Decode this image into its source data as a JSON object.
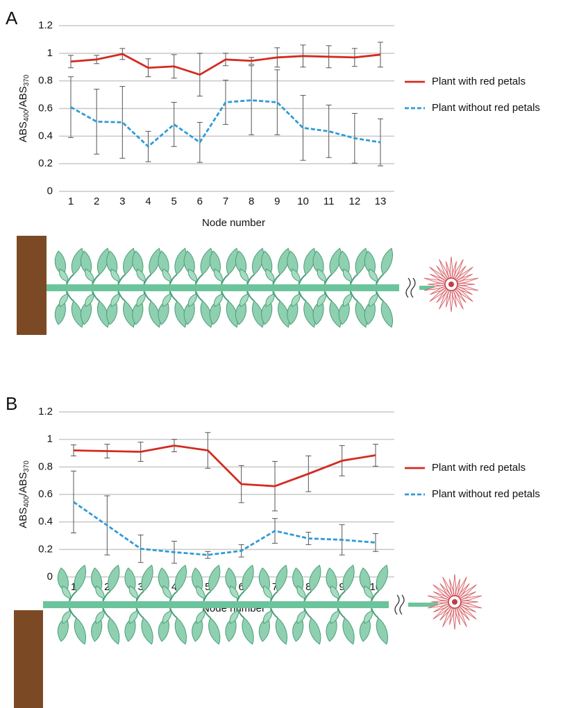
{
  "chart_data": [
    {
      "type": "line",
      "panel": "A",
      "y_label": [
        "ABS",
        "400",
        "/ABS",
        "370"
      ],
      "x_label": "Node number",
      "categories": [
        "1",
        "2",
        "3",
        "4",
        "5",
        "6",
        "7",
        "8",
        "9",
        "10",
        "11",
        "12",
        "13"
      ],
      "ylim": [
        0,
        1.2
      ],
      "yticks": [
        0,
        0.2,
        0.4,
        0.6,
        0.8,
        1,
        1.2
      ],
      "grid": true,
      "series": [
        {
          "name": "Plant with red petals",
          "color": "#d42a20",
          "dashed": false,
          "values": [
            0.94,
            0.955,
            0.995,
            0.895,
            0.905,
            0.845,
            0.955,
            0.945,
            0.97,
            0.98,
            0.975,
            0.97,
            0.99
          ],
          "errors": [
            0.045,
            0.03,
            0.04,
            0.065,
            0.085,
            0.155,
            0.045,
            0.025,
            0.07,
            0.08,
            0.08,
            0.065,
            0.09
          ]
        },
        {
          "name": "Plant without red petals",
          "color": "#2e9bd6",
          "dashed": true,
          "values": [
            0.61,
            0.505,
            0.5,
            0.325,
            0.485,
            0.355,
            0.645,
            0.66,
            0.645,
            0.46,
            0.435,
            0.385,
            0.355
          ],
          "errors": [
            0.22,
            0.235,
            0.26,
            0.11,
            0.16,
            0.145,
            0.16,
            0.25,
            0.235,
            0.235,
            0.19,
            0.18,
            0.17
          ]
        }
      ]
    },
    {
      "type": "line",
      "panel": "B",
      "y_label": [
        "ABS",
        "400",
        "/ABS",
        "370"
      ],
      "x_label": "Node number",
      "categories": [
        "1",
        "2",
        "3",
        "4",
        "5",
        "6",
        "7",
        "8",
        "9",
        "10"
      ],
      "ylim": [
        0,
        1.2
      ],
      "yticks": [
        0,
        0.2,
        0.4,
        0.6,
        0.8,
        1,
        1.2
      ],
      "grid": true,
      "series": [
        {
          "name": "Plant with red petals",
          "color": "#d42a20",
          "dashed": false,
          "values": [
            0.92,
            0.915,
            0.91,
            0.955,
            0.92,
            0.675,
            0.66,
            0.75,
            0.845,
            0.885
          ],
          "errors": [
            0.04,
            0.05,
            0.07,
            0.045,
            0.13,
            0.135,
            0.18,
            0.13,
            0.11,
            0.08
          ]
        },
        {
          "name": "Plant without red petals",
          "color": "#2e9bd6",
          "dashed": true,
          "values": [
            0.545,
            0.375,
            0.205,
            0.18,
            0.16,
            0.19,
            0.335,
            0.28,
            0.27,
            0.25
          ],
          "errors": [
            0.225,
            0.215,
            0.1,
            0.08,
            0.025,
            0.045,
            0.09,
            0.045,
            0.11,
            0.065
          ]
        }
      ]
    }
  ]
}
